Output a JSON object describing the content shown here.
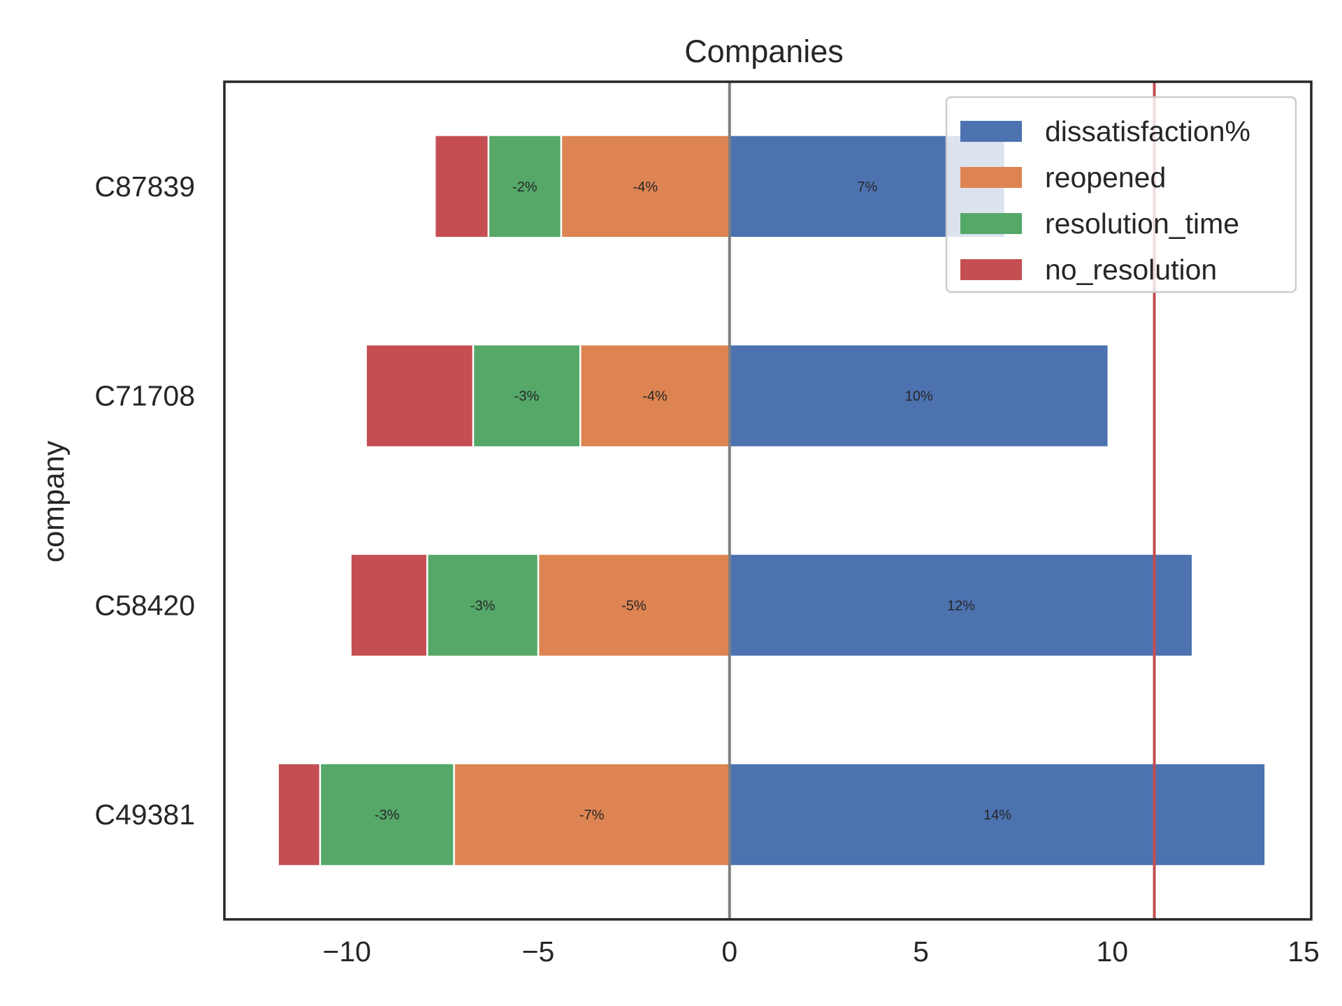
{
  "chart_data": {
    "type": "bar",
    "orientation": "horizontal",
    "stacked": true,
    "title": "Companies",
    "xlabel": "",
    "ylabel": "company",
    "xlim": [
      -13.2,
      15.2
    ],
    "x_ticks": [
      -10,
      -5,
      0,
      5,
      10,
      15
    ],
    "x_tick_labels": [
      "−10",
      "−5",
      "0",
      "5",
      "10",
      "15"
    ],
    "categories": [
      "C87839",
      "C71708",
      "C58420",
      "C49381"
    ],
    "series": [
      {
        "name": "dissatisfaction%",
        "color": "#4c72b0",
        "values": [
          7.2,
          9.9,
          12.1,
          14.0
        ],
        "labels": [
          "7%",
          "10%",
          "12%",
          "14%"
        ]
      },
      {
        "name": "reopened",
        "color": "#dd8452",
        "values": [
          -4.4,
          -3.9,
          -5.0,
          -7.2
        ],
        "labels": [
          "-4%",
          "-4%",
          "-5%",
          "-7%"
        ]
      },
      {
        "name": "resolution_time",
        "color": "#55a868",
        "values": [
          -1.9,
          -2.8,
          -2.9,
          -3.5
        ],
        "labels": [
          "-2%",
          "-3%",
          "-3%",
          "-3%"
        ]
      },
      {
        "name": "no_resolution",
        "color": "#c44e52",
        "values": [
          -1.4,
          -2.8,
          -2.0,
          -1.1
        ],
        "labels": [
          "",
          "",
          "",
          ""
        ]
      }
    ],
    "reference_lines": [
      {
        "x": 0,
        "color": "#808080"
      },
      {
        "x": 11.1,
        "color": "#c44e52"
      }
    ],
    "legend_position": "top-right",
    "grid": false
  }
}
